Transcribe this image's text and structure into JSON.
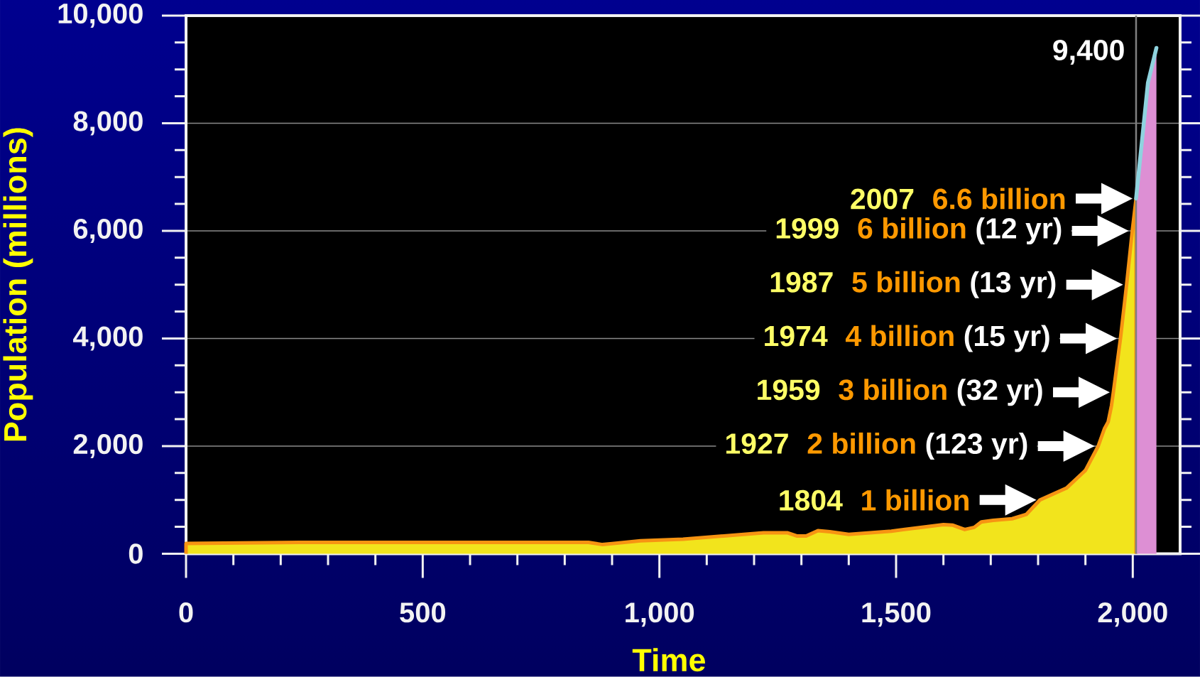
{
  "chart_data": {
    "type": "area",
    "xlabel": "Time",
    "ylabel": "Population (millions)",
    "xlim": [
      0,
      2100
    ],
    "ylim": [
      0,
      10000
    ],
    "xticks": [
      0,
      500,
      {
        "value": 1000,
        "label": "1,000"
      },
      {
        "value": 1500,
        "label": "1,500"
      },
      {
        "value": 2000,
        "label": "2,000"
      }
    ],
    "yticks": [
      0,
      {
        "value": 2000,
        "label": "2,000"
      },
      {
        "value": 4000,
        "label": "4,000"
      },
      {
        "value": 6000,
        "label": "6,000"
      },
      {
        "value": 8000,
        "label": "8,000"
      },
      {
        "value": 10000,
        "label": "10,000"
      }
    ],
    "grid": "y",
    "series": [
      {
        "color": "#f2e41c",
        "x": [
          0,
          240,
          850,
          880,
          960,
          1050,
          1150,
          1220,
          1270,
          1290,
          1310,
          1335,
          1360,
          1400,
          1490,
          1600,
          1620,
          1645,
          1665,
          1680,
          1705,
          1745,
          1775,
          1804,
          1860,
          1900,
          1927,
          1940,
          1948,
          1955,
          1959,
          1974,
          1987,
          1999,
          2007
        ],
        "values": [
          190,
          210,
          210,
          170,
          240,
          270,
          340,
          390,
          390,
          330,
          330,
          430,
          410,
          360,
          420,
          540,
          530,
          450,
          490,
          590,
          620,
          650,
          730,
          1000,
          1220,
          1550,
          2000,
          2320,
          2450,
          2750,
          3000,
          4000,
          5000,
          6000,
          6600
        ]
      },
      {
        "color": "#dd8fd4",
        "x": [
          2007,
          2032,
          2050
        ],
        "values": [
          6600,
          8750,
          9400
        ]
      },
      {
        "type": "line",
        "color": "#8fd3df",
        "x": [
          2007,
          2032,
          2050
        ],
        "values": [
          6600,
          8750,
          9400
        ],
        "value_labels": [
          null,
          null,
          "9,400"
        ]
      }
    ],
    "ref_lines": [
      {
        "axis": "x",
        "value": 2007,
        "color": "#808080"
      }
    ],
    "annotations": [
      "1804",
      {
        "text": "1 billion",
        "x": 1804,
        "y": 1000
      },
      "1927",
      "2 billion",
      {
        "text": "(123 yr)",
        "x": 1927,
        "y": 2000
      },
      "1959",
      "3 billion",
      {
        "text": "(32 yr)",
        "x": 1959,
        "y": 3000
      },
      "1974",
      "4 billion",
      {
        "text": "(15 yr)",
        "x": 1974,
        "y": 4000
      },
      "1987",
      "5 billion",
      {
        "text": "(13 yr)",
        "x": 1987,
        "y": 5000
      },
      "1999",
      "6 billion",
      {
        "text": "(12 yr)",
        "x": 1999,
        "y": 6000
      },
      "2007",
      {
        "text": "6.6 billion",
        "x": 2007,
        "y": 6600
      }
    ]
  }
}
